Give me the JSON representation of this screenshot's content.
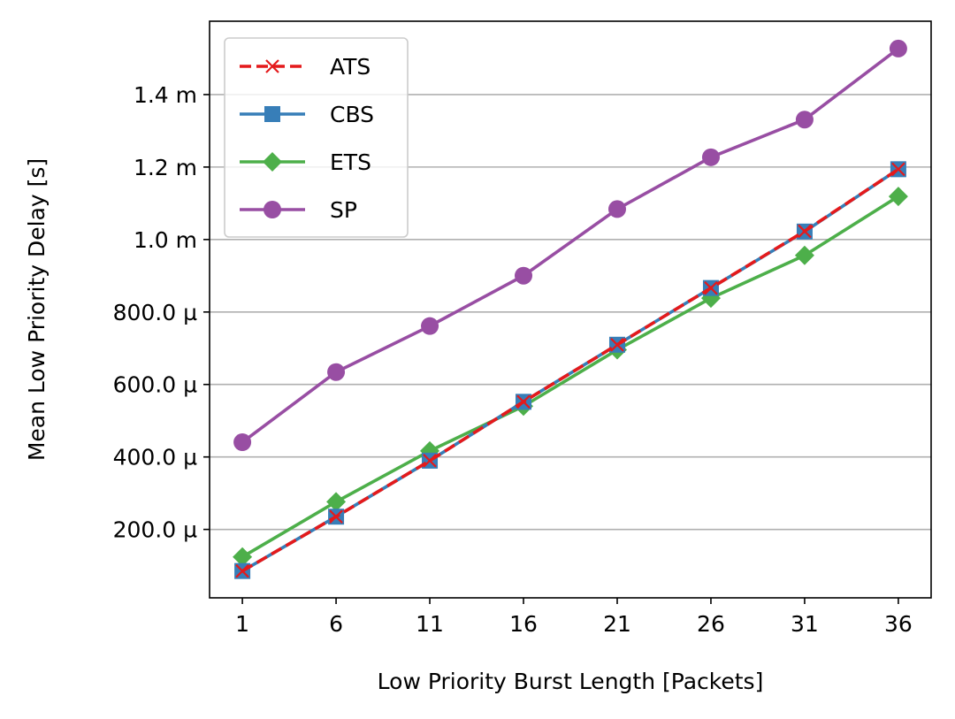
{
  "chart_data": {
    "type": "line",
    "title": "",
    "xlabel": "Low Priority Burst Length [Packets]",
    "ylabel": "Mean Low Priority Delay [s]",
    "x": [
      1,
      6,
      11,
      16,
      21,
      26,
      31,
      36
    ],
    "xticks": [
      "1",
      "6",
      "11",
      "16",
      "21",
      "26",
      "31",
      "36"
    ],
    "yticks": [
      {
        "value": 0.0002,
        "label": "200.0 µ"
      },
      {
        "value": 0.0004,
        "label": "400.0 µ"
      },
      {
        "value": 0.0006,
        "label": "600.0 µ"
      },
      {
        "value": 0.0008,
        "label": "800.0 µ"
      },
      {
        "value": 0.001,
        "label": "1.0 m"
      },
      {
        "value": 0.0012,
        "label": "1.2 m"
      },
      {
        "value": 0.0014,
        "label": "1.4 m"
      }
    ],
    "xlim": [
      -0.75,
      37.75
    ],
    "ylim": [
      1.12e-05,
      0.0016024
    ],
    "grid": "y",
    "legend_position": "top-left",
    "series": [
      {
        "name": "ATS",
        "color": "#e41a1c",
        "marker": "x",
        "dashed": true,
        "values": [
          8.52e-05,
          0.0002352,
          0.0003897,
          0.0005522,
          0.0007097,
          0.0008662,
          0.001023,
          0.001194
        ]
      },
      {
        "name": "CBS",
        "color": "#377eb8",
        "marker": "square",
        "dashed": false,
        "values": [
          8.52e-05,
          0.0002352,
          0.0003897,
          0.0005522,
          0.0007097,
          0.0008662,
          0.001022,
          0.001194
        ]
      },
      {
        "name": "ETS",
        "color": "#4daf4a",
        "marker": "diamond",
        "dashed": false,
        "values": [
          0.0001242,
          0.0002762,
          0.0004167,
          0.0005402,
          0.0006957,
          0.0008382,
          0.0009562,
          0.001119
        ]
      },
      {
        "name": "SP",
        "color": "#984ea3",
        "marker": "circle",
        "dashed": false,
        "values": [
          0.0004407,
          0.0006342,
          0.0007612,
          0.0009002,
          0.001084,
          0.001227,
          0.001331,
          0.001527
        ]
      }
    ]
  }
}
